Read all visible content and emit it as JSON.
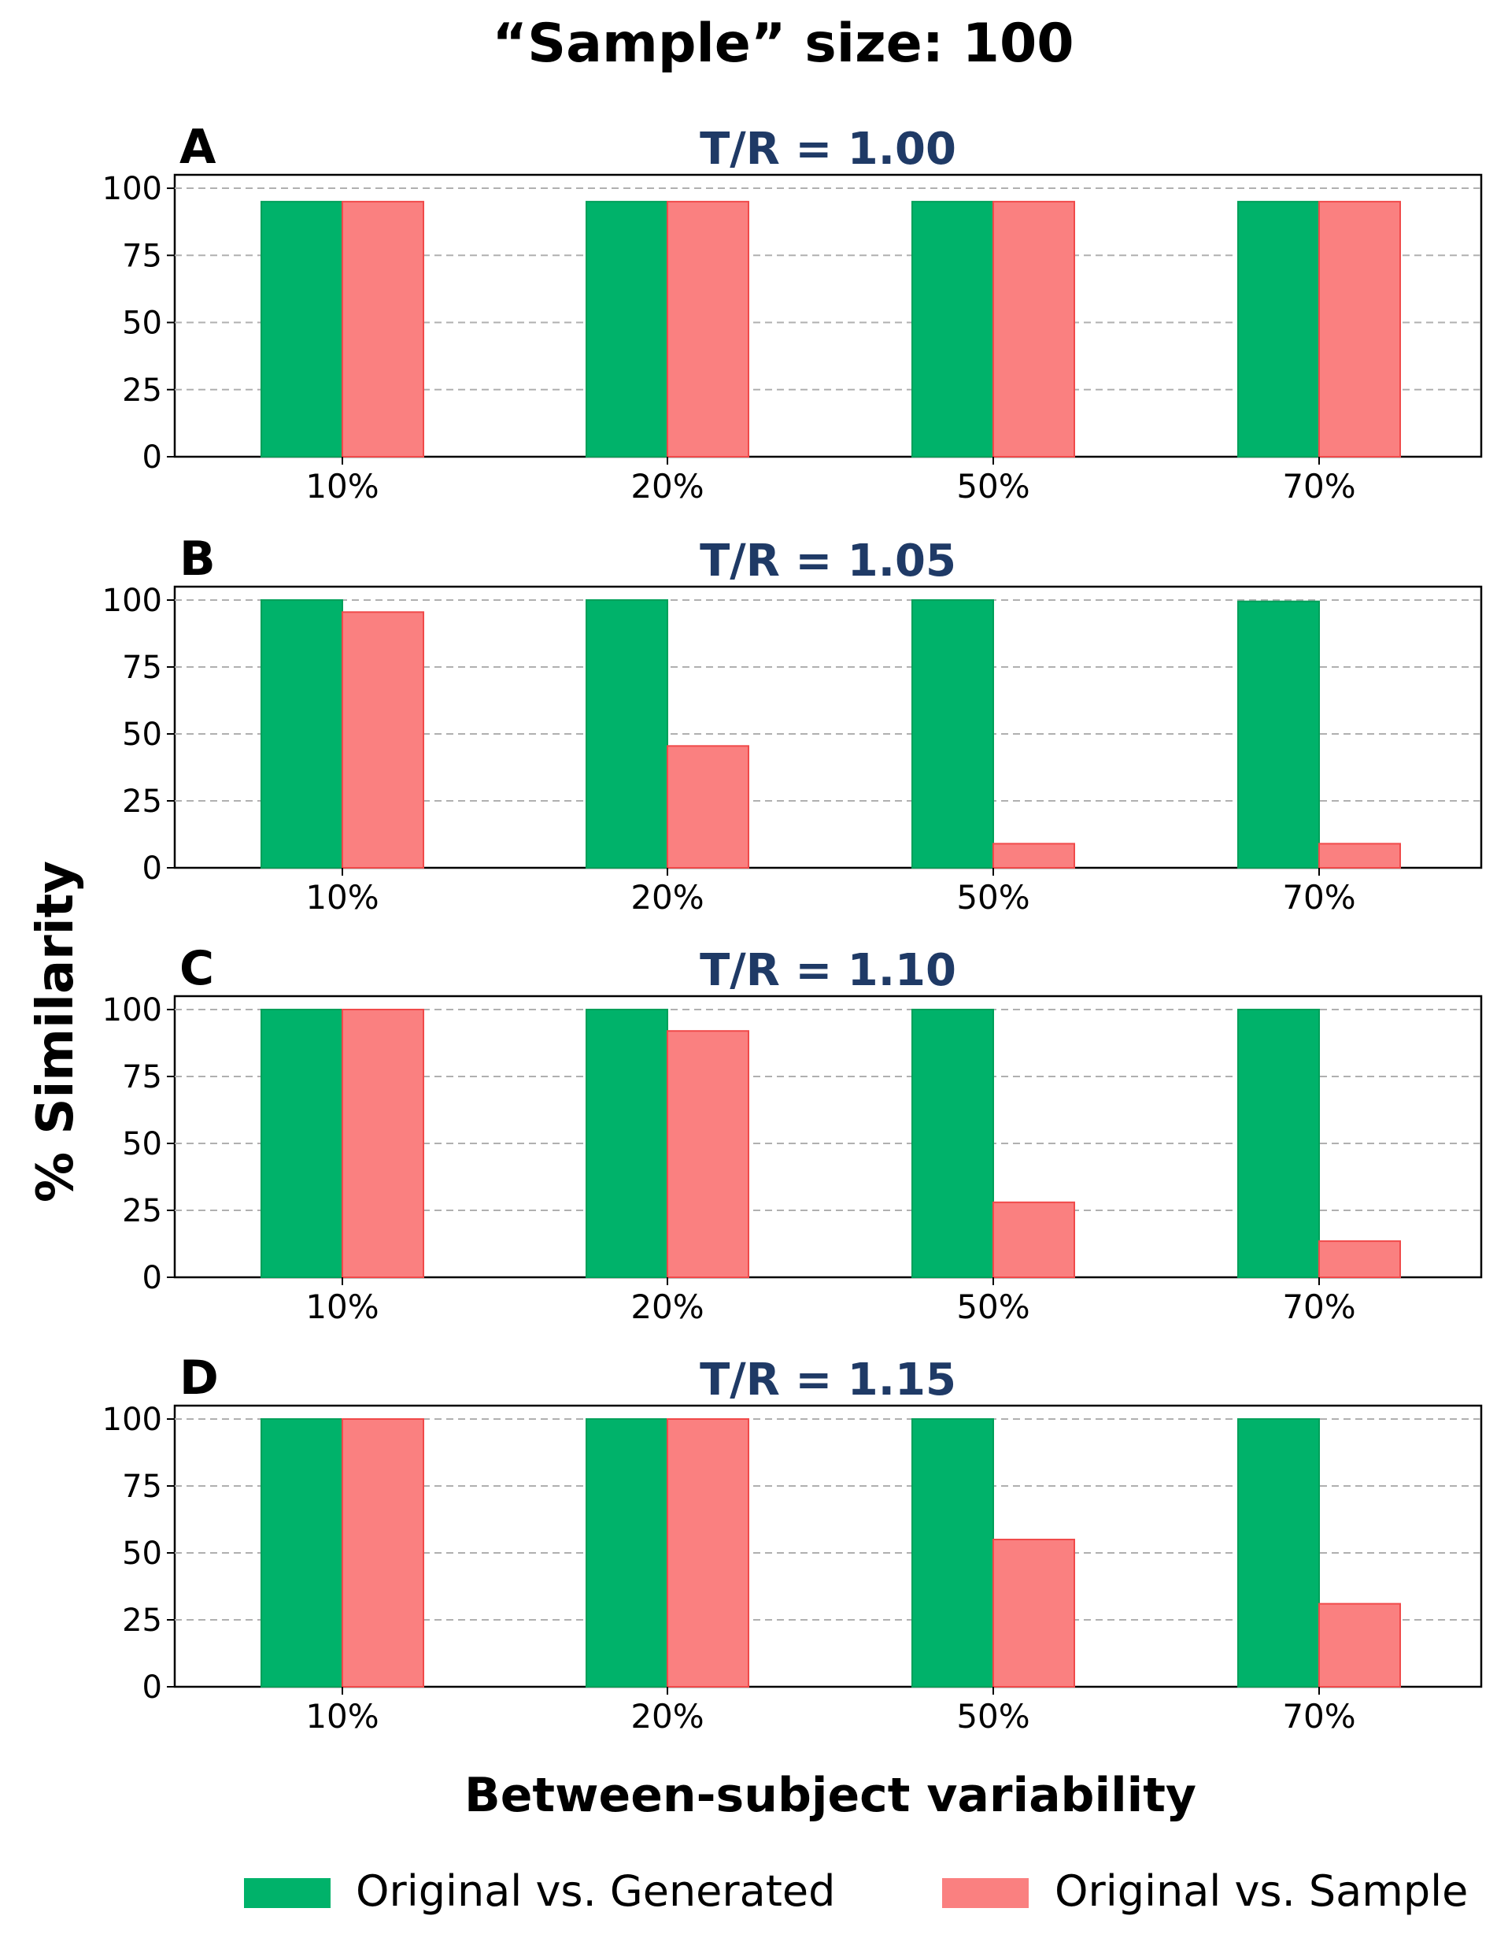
{
  "figure_title": "“Sample” size: 100",
  "ylabel": "% Similarity",
  "xlabel": "Between-subject variability",
  "legend": [
    {
      "label": "Original vs. Generated",
      "color": "#00b26a"
    },
    {
      "label": "Original vs. Sample",
      "color": "#fa8080"
    }
  ],
  "colors": {
    "generated": "#00b26a",
    "generated_edge": "#00a05a",
    "sample": "#fa8080",
    "sample_edge": "#f04a4a",
    "panel_title": "#1f3a66",
    "grid": "#b0b0b0"
  },
  "chart_data": [
    {
      "type": "bar",
      "panel": "A",
      "title": "T/R = 1.00",
      "categories": [
        "10%",
        "20%",
        "50%",
        "70%"
      ],
      "series": [
        {
          "name": "Original vs. Generated",
          "values": [
            95,
            95,
            95,
            95
          ]
        },
        {
          "name": "Original vs. Sample",
          "values": [
            95,
            95,
            95,
            95
          ]
        }
      ],
      "yticks": [
        "0",
        "25",
        "50",
        "75",
        "100"
      ],
      "ylim": [
        0,
        105
      ],
      "grid": true
    },
    {
      "type": "bar",
      "panel": "B",
      "title": "T/R = 1.05",
      "categories": [
        "10%",
        "20%",
        "50%",
        "70%"
      ],
      "series": [
        {
          "name": "Original vs. Generated",
          "values": [
            100,
            100,
            100,
            99.5
          ]
        },
        {
          "name": "Original vs. Sample",
          "values": [
            95.5,
            45.5,
            9,
            9
          ]
        }
      ],
      "yticks": [
        "0",
        "25",
        "50",
        "75",
        "100"
      ],
      "ylim": [
        0,
        105
      ],
      "grid": true
    },
    {
      "type": "bar",
      "panel": "C",
      "title": "T/R = 1.10",
      "categories": [
        "10%",
        "20%",
        "50%",
        "70%"
      ],
      "series": [
        {
          "name": "Original vs. Generated",
          "values": [
            100,
            100,
            100,
            100
          ]
        },
        {
          "name": "Original vs. Sample",
          "values": [
            100,
            92,
            28,
            13.5
          ]
        }
      ],
      "yticks": [
        "0",
        "25",
        "50",
        "75",
        "100"
      ],
      "ylim": [
        0,
        105
      ],
      "grid": true
    },
    {
      "type": "bar",
      "panel": "D",
      "title": "T/R = 1.15",
      "categories": [
        "10%",
        "20%",
        "50%",
        "70%"
      ],
      "series": [
        {
          "name": "Original vs. Generated",
          "values": [
            100,
            100,
            100,
            100
          ]
        },
        {
          "name": "Original vs. Sample",
          "values": [
            100,
            100,
            55,
            31
          ]
        }
      ],
      "yticks": [
        "0",
        "25",
        "50",
        "75",
        "100"
      ],
      "ylim": [
        0,
        105
      ],
      "grid": true
    }
  ]
}
